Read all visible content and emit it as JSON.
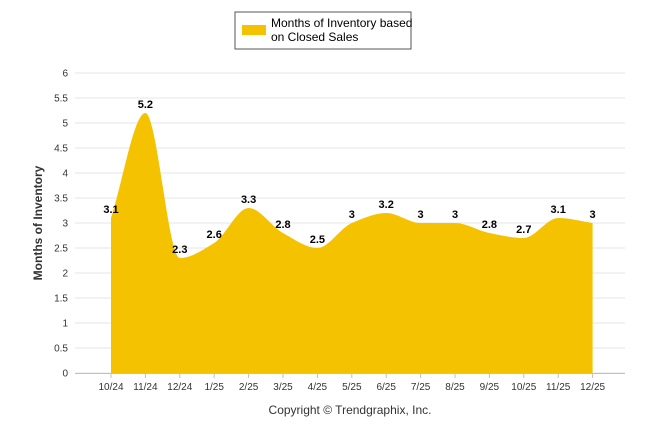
{
  "chart_data": {
    "type": "area",
    "categories": [
      "10/24",
      "11/24",
      "12/24",
      "1/25",
      "2/25",
      "3/25",
      "4/25",
      "5/25",
      "6/25",
      "7/25",
      "8/25",
      "9/25",
      "10/25",
      "11/25",
      "12/25"
    ],
    "series": [
      {
        "name_lines": [
          "Months of Inventory based",
          "on Closed Sales"
        ],
        "values": [
          3.1,
          5.2,
          2.3,
          2.6,
          3.3,
          2.8,
          2.5,
          3,
          3.2,
          3,
          3,
          2.8,
          2.7,
          3.1,
          3
        ],
        "color": "#f5c200"
      }
    ],
    "ylabel": "Months of Inventory",
    "ylim": [
      0,
      6
    ],
    "yticks": [
      "0",
      "0.5",
      "1",
      "1.5",
      "2",
      "2.5",
      "3",
      "3.5",
      "4",
      "4.5",
      "5",
      "5.5",
      "6"
    ],
    "data_labels": [
      "3.1",
      "5.2",
      "2.3",
      "2.6",
      "3.3",
      "2.8",
      "2.5",
      "3",
      "3.2",
      "3",
      "3",
      "2.8",
      "2.7",
      "3.1",
      "3"
    ],
    "grid": true,
    "legend": "top-center"
  },
  "credit": "Copyright © Trendgraphix, Inc.",
  "colors": {
    "area": "#f5c200",
    "grid": "#e6e6e6",
    "axis": "#c0c0c0",
    "legend_border": "#555555"
  }
}
